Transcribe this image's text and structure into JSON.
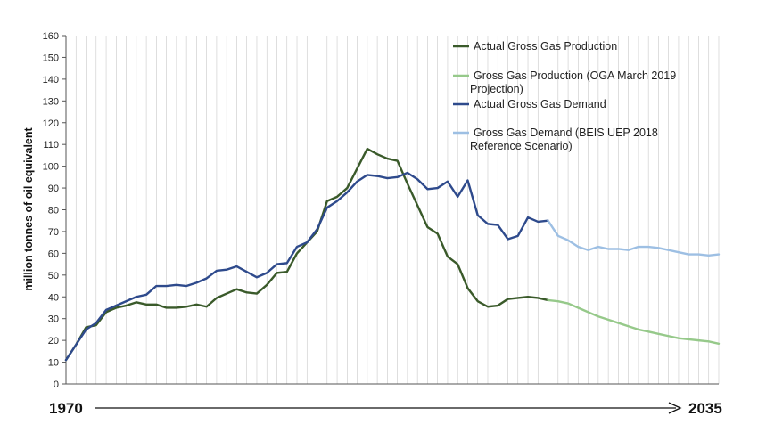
{
  "chart_data": {
    "type": "line",
    "ylabel": "million tonnes of oil equivalent",
    "x_start_label": "1970",
    "x_end_label": "2035",
    "ylim": [
      0,
      160
    ],
    "yticks": [
      0,
      10,
      20,
      30,
      40,
      50,
      60,
      70,
      80,
      90,
      100,
      110,
      120,
      130,
      140,
      150,
      160
    ],
    "xlim": [
      1970,
      2035
    ],
    "grid": "vertical",
    "legend_position": "top-right",
    "series": [
      {
        "name": "Actual Gross Gas Production",
        "color": "#3a5a2a",
        "x": [
          1970,
          1971,
          1972,
          1973,
          1974,
          1975,
          1976,
          1977,
          1978,
          1979,
          1980,
          1981,
          1982,
          1983,
          1984,
          1985,
          1986,
          1987,
          1988,
          1989,
          1990,
          1991,
          1992,
          1993,
          1994,
          1995,
          1996,
          1997,
          1998,
          1999,
          2000,
          2001,
          2002,
          2003,
          2004,
          2005,
          2006,
          2007,
          2008,
          2009,
          2010,
          2011,
          2012,
          2013,
          2014,
          2015,
          2016,
          2017,
          2018
        ],
        "values": [
          11,
          18,
          26,
          27,
          33,
          35,
          36,
          37.5,
          36.5,
          36.5,
          35,
          35,
          35.5,
          36.5,
          35.5,
          39.5,
          41.5,
          43.5,
          42,
          41.5,
          45.5,
          51,
          51.5,
          60,
          65,
          70,
          84,
          86,
          90,
          99,
          108,
          105.5,
          103.5,
          102.5,
          92,
          82,
          72,
          69,
          58.5,
          55,
          44,
          38,
          35.5,
          36,
          39,
          39.5,
          40,
          39.5,
          38.5
        ]
      },
      {
        "name": "Gross Gas Production (OGA March 2019 Projection)",
        "color": "#96c98a",
        "x": [
          2018,
          2019,
          2020,
          2021,
          2022,
          2023,
          2024,
          2025,
          2026,
          2027,
          2028,
          2029,
          2030,
          2031,
          2032,
          2033,
          2034,
          2035
        ],
        "values": [
          38.5,
          38,
          37,
          35,
          33,
          31,
          29.5,
          28,
          26.5,
          25,
          24,
          23,
          22,
          21,
          20.5,
          20,
          19.5,
          18.5
        ]
      },
      {
        "name": "Actual Gross Gas Demand",
        "color": "#2e4a8c",
        "x": [
          1970,
          1971,
          1972,
          1973,
          1974,
          1975,
          1976,
          1977,
          1978,
          1979,
          1980,
          1981,
          1982,
          1983,
          1984,
          1985,
          1986,
          1987,
          1988,
          1989,
          1990,
          1991,
          1992,
          1993,
          1994,
          1995,
          1996,
          1997,
          1998,
          1999,
          2000,
          2001,
          2002,
          2003,
          2004,
          2005,
          2006,
          2007,
          2008,
          2009,
          2010,
          2011,
          2012,
          2013,
          2014,
          2015,
          2016,
          2017,
          2018
        ],
        "values": [
          11,
          18,
          25,
          28,
          34,
          36,
          38,
          40,
          41,
          45,
          45,
          45.5,
          45,
          46.5,
          48.5,
          52,
          52.5,
          54,
          51.5,
          49,
          51,
          55,
          55.5,
          63,
          65,
          71,
          81,
          84,
          88,
          93,
          96,
          95.5,
          94.5,
          95,
          97,
          94,
          89.5,
          90,
          93,
          86,
          93.5,
          77.5,
          73.5,
          73,
          66.5,
          68,
          76.5,
          74.5,
          75
        ]
      },
      {
        "name": "Gross Gas Demand (BEIS UEP 2018 Reference Scenario)",
        "color": "#9dbfe3",
        "x": [
          2018,
          2019,
          2020,
          2021,
          2022,
          2023,
          2024,
          2025,
          2026,
          2027,
          2028,
          2029,
          2030,
          2031,
          2032,
          2033,
          2034,
          2035
        ],
        "values": [
          75,
          68,
          66,
          63,
          61.5,
          63,
          62,
          62,
          61.5,
          63,
          63,
          62.5,
          61.5,
          60.5,
          59.5,
          59.5,
          59,
          59.5
        ]
      }
    ],
    "legend": [
      {
        "lines": [
          "Actual Gross Gas Production"
        ]
      },
      {
        "lines": [
          "Gross Gas Production (OGA March 2019",
          "Projection)"
        ]
      },
      {
        "lines": [
          "Actual Gross Gas Demand"
        ]
      },
      {
        "lines": [
          "Gross Gas Demand (BEIS UEP 2018",
          "Reference Scenario)"
        ]
      }
    ]
  }
}
